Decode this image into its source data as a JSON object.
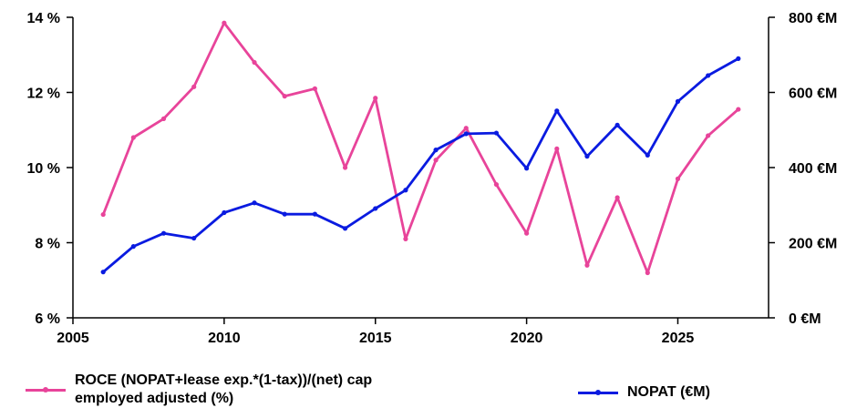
{
  "chart_data": {
    "type": "line",
    "x_ticks": [
      2005,
      2010,
      2015,
      2020,
      2025
    ],
    "xlim": [
      2005,
      2028
    ],
    "y_left": {
      "lim": [
        6,
        14
      ],
      "ticks": [
        6,
        8,
        10,
        12,
        14
      ],
      "tick_labels": [
        "6 %",
        "8 %",
        "10 %",
        "12 %",
        "14 %"
      ]
    },
    "y_right": {
      "lim": [
        0,
        800
      ],
      "ticks": [
        0,
        200,
        400,
        600,
        800
      ],
      "tick_labels": [
        "0 €M",
        "200 €M",
        "400 €M",
        "600 €M",
        "800 €M"
      ]
    },
    "legend_placement": "bottom",
    "grid": false,
    "series": [
      {
        "name": "ROCE (NOPAT+lease exp.*(1-tax))/(net) cap employed adjusted (%)",
        "axis": "left",
        "color": "#e8449a",
        "x": [
          2006,
          2007,
          2008,
          2009,
          2010,
          2011,
          2012,
          2013,
          2014,
          2015,
          2016,
          2017,
          2018,
          2019,
          2020,
          2021,
          2022,
          2023,
          2024,
          2025,
          2026,
          2027
        ],
        "values": [
          8.75,
          10.8,
          11.3,
          12.15,
          13.85,
          12.8,
          11.9,
          12.1,
          10.0,
          11.85,
          8.1,
          10.2,
          11.05,
          9.55,
          8.25,
          10.5,
          7.4,
          9.2,
          7.2,
          9.7,
          10.85,
          11.55
        ]
      },
      {
        "name": "NOPAT (€M)",
        "axis": "right",
        "color": "#0a1be0",
        "x": [
          2006,
          2007,
          2008,
          2009,
          2010,
          2011,
          2012,
          2013,
          2014,
          2015,
          2016,
          2017,
          2018,
          2019,
          2020,
          2021,
          2022,
          2023,
          2024,
          2025,
          2026,
          2027
        ],
        "values": [
          122,
          190,
          225,
          212,
          280,
          306,
          276,
          276,
          238,
          291,
          340,
          447,
          490,
          492,
          398,
          551,
          430,
          513,
          433,
          576,
          645,
          690
        ]
      }
    ]
  }
}
